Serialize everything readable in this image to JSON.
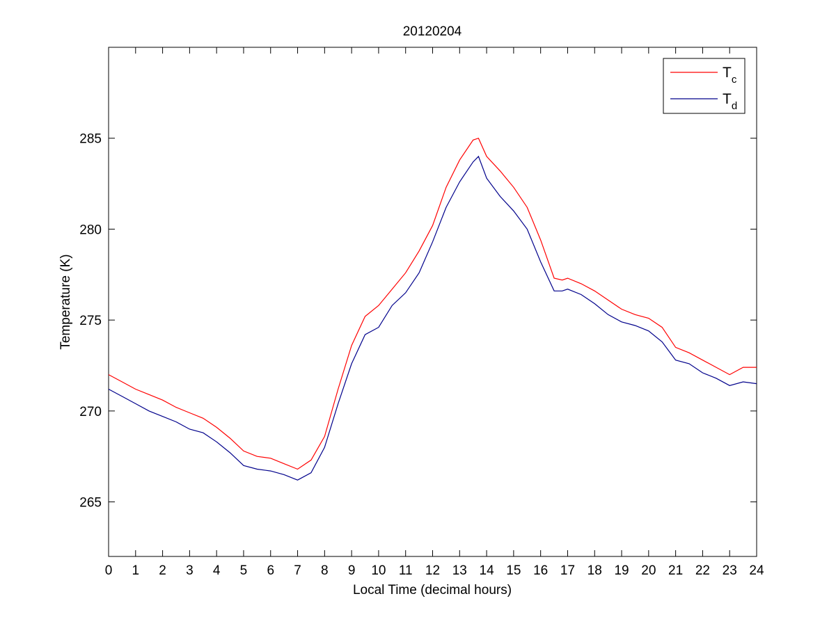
{
  "chart_data": {
    "type": "line",
    "title": "20120204",
    "xlabel": "Local Time (decimal hours)",
    "ylabel": "Temperature (K)",
    "xlim": [
      0,
      24
    ],
    "ylim": [
      262,
      290
    ],
    "xticks": [
      0,
      1,
      2,
      3,
      4,
      5,
      6,
      7,
      8,
      9,
      10,
      11,
      12,
      13,
      14,
      15,
      16,
      17,
      18,
      19,
      20,
      21,
      22,
      23,
      24
    ],
    "yticks": [
      265,
      270,
      275,
      280,
      285
    ],
    "grid": false,
    "legend_position": "top-right",
    "series": [
      {
        "name": "T",
        "name_subscript": "c",
        "color": "#ff0000",
        "x": [
          0,
          0.5,
          1,
          1.5,
          2,
          2.5,
          3,
          3.5,
          4,
          4.5,
          5,
          5.5,
          6,
          6.5,
          7,
          7.5,
          8,
          8.5,
          9,
          9.5,
          10,
          10.5,
          11,
          11.5,
          12,
          12.5,
          13,
          13.5,
          13.7,
          14,
          14.5,
          15,
          15.5,
          16,
          16.5,
          16.8,
          17,
          17.5,
          18,
          18.5,
          19,
          19.5,
          20,
          20.5,
          21,
          21.5,
          22,
          22.5,
          23,
          23.5,
          24
        ],
        "y": [
          272.0,
          271.6,
          271.2,
          270.9,
          270.6,
          270.2,
          269.9,
          269.6,
          269.1,
          268.5,
          267.8,
          267.5,
          267.4,
          267.1,
          266.8,
          267.3,
          268.6,
          271.2,
          273.6,
          275.2,
          275.8,
          276.7,
          277.6,
          278.8,
          280.2,
          282.3,
          283.8,
          284.9,
          285.0,
          284.0,
          283.2,
          282.3,
          281.2,
          279.4,
          277.3,
          277.2,
          277.3,
          277.0,
          276.6,
          276.1,
          275.6,
          275.3,
          275.1,
          274.6,
          273.5,
          273.2,
          272.8,
          272.4,
          272.0,
          272.4,
          272.4
        ]
      },
      {
        "name": "T",
        "name_subscript": "d",
        "color": "#00008b",
        "x": [
          0,
          0.5,
          1,
          1.5,
          2,
          2.5,
          3,
          3.5,
          4,
          4.5,
          5,
          5.5,
          6,
          6.5,
          7,
          7.5,
          8,
          8.5,
          9,
          9.5,
          10,
          10.5,
          11,
          11.5,
          12,
          12.5,
          13,
          13.5,
          13.7,
          14,
          14.5,
          15,
          15.5,
          16,
          16.5,
          16.8,
          17,
          17.5,
          18,
          18.5,
          19,
          19.5,
          20,
          20.5,
          21,
          21.5,
          22,
          22.5,
          23,
          23.5,
          24
        ],
        "y": [
          271.2,
          270.8,
          270.4,
          270.0,
          269.7,
          269.4,
          269.0,
          268.8,
          268.3,
          267.7,
          267.0,
          266.8,
          266.7,
          266.5,
          266.2,
          266.6,
          268.0,
          270.4,
          272.6,
          274.2,
          274.6,
          275.8,
          276.5,
          277.6,
          279.3,
          281.2,
          282.6,
          283.7,
          284.0,
          282.8,
          281.8,
          281.0,
          280.0,
          278.2,
          276.6,
          276.6,
          276.7,
          276.4,
          275.9,
          275.3,
          274.9,
          274.7,
          274.4,
          273.8,
          272.8,
          272.6,
          272.1,
          271.8,
          271.4,
          271.6,
          271.5
        ]
      }
    ]
  }
}
